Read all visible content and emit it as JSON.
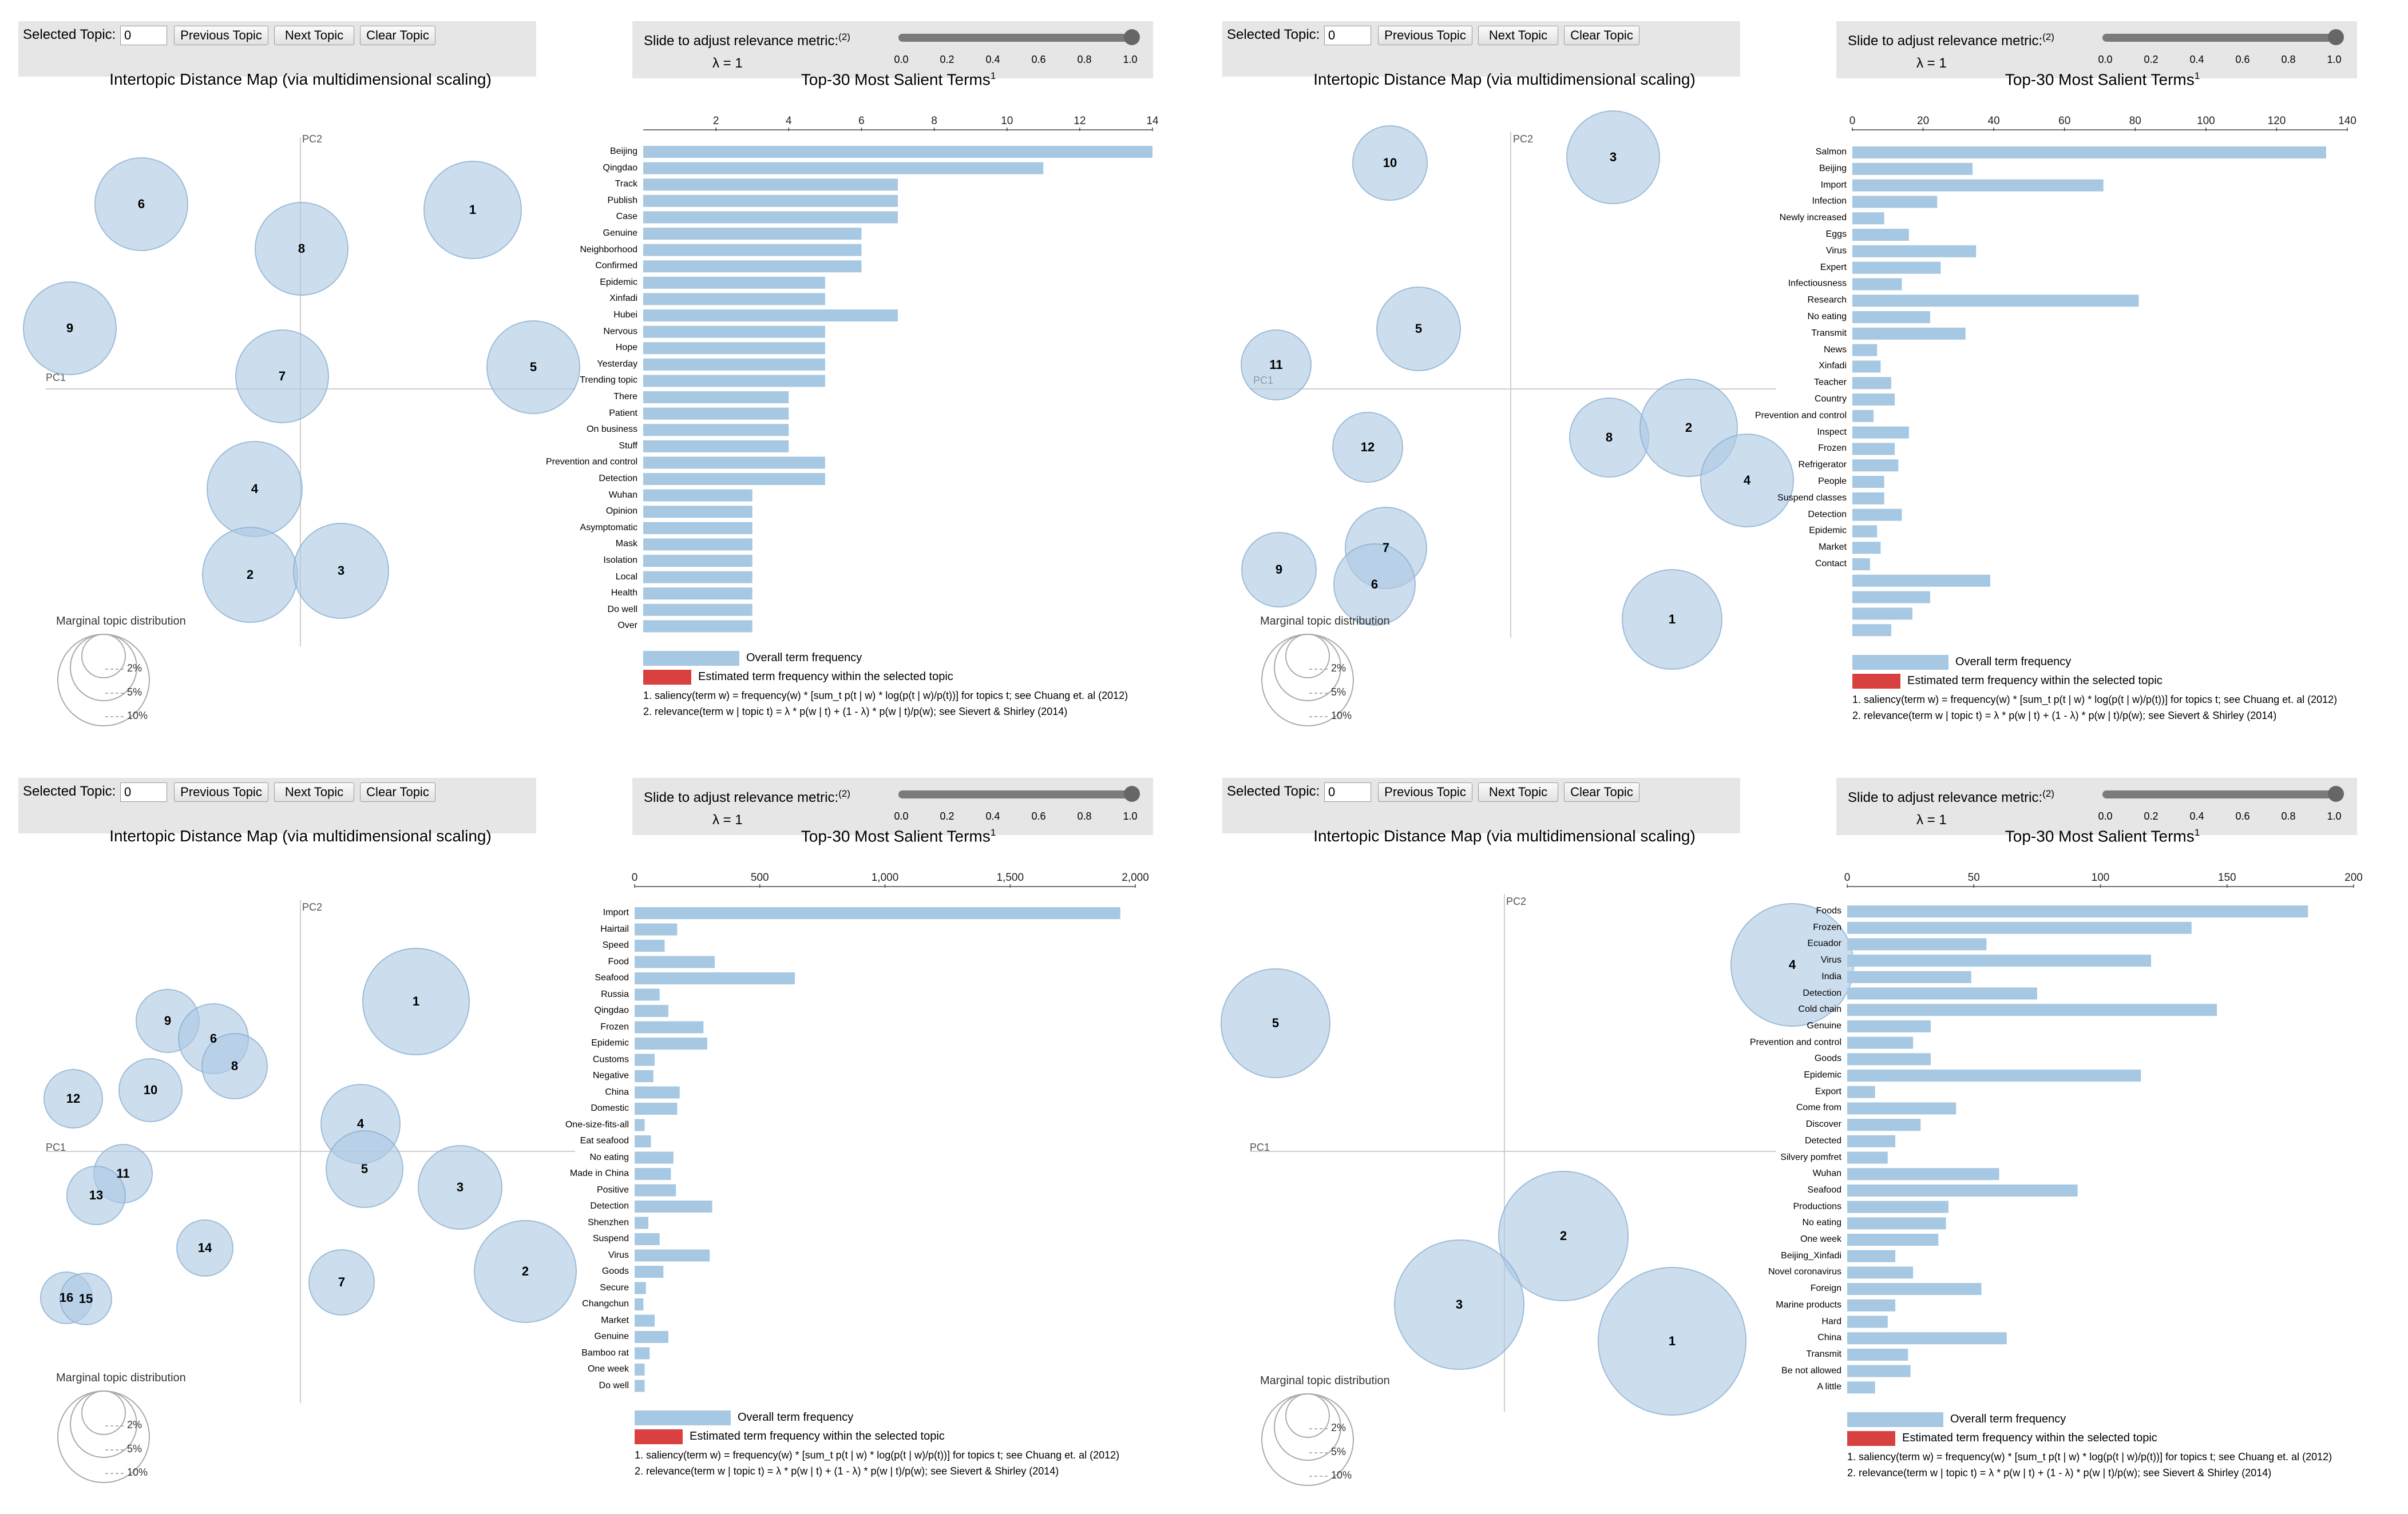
{
  "common": {
    "selected_topic_label": "Selected Topic:",
    "previous_topic": "Previous Topic",
    "next_topic": "Next Topic",
    "clear_topic": "Clear Topic",
    "relevance_label": "Slide to adjust relevance metric:",
    "relevance_sup": "(2)",
    "lambda_text": "λ = 1",
    "slider_ticks": [
      "0.0",
      "0.2",
      "0.4",
      "0.6",
      "0.8",
      "1.0"
    ],
    "slider_value": 1.0,
    "idm_title": "Intertopic Distance Map (via multidimensional scaling)",
    "salient_title": "Top-30 Most Salient Terms",
    "salient_sup": "1",
    "pc1": "PC1",
    "pc2": "PC2",
    "marginal_label": "Marginal topic distribution",
    "marginal_sizes": [
      "2%",
      "5%",
      "10%"
    ],
    "legend_overall": "Overall term frequency",
    "legend_estimated": "Estimated term frequency within the selected topic",
    "footnote1": "1. saliency(term w) = frequency(w) * [sum_t p(t | w) * log(p(t | w)/p(t))] for topics t; see Chuang et. al (2012)",
    "footnote2": "2. relevance(term w | topic t) = λ * p(w | t) + (1 - λ) * p(w | t)/p(w); see Sievert & Shirley (2014)",
    "colors": {
      "bar": "#a6c8e3",
      "estimated": "#d94040",
      "bubble": "#adcae3",
      "panel_bg": "#e6e6e6"
    }
  },
  "panels": [
    {
      "selected_topic_value": "0",
      "topics": [
        "6",
        "8",
        "1",
        "9",
        "7",
        "5",
        "4",
        "2",
        "3"
      ],
      "chart_data": {
        "type": "bar",
        "title": "Top-30 Most Salient Terms",
        "xlim": [
          0,
          14
        ],
        "ticks": [
          2,
          4,
          6,
          8,
          10,
          12,
          14
        ],
        "tick_labels": [
          "2",
          "4",
          "6",
          "8",
          "10",
          "12",
          "14"
        ],
        "categories": [
          "Beijing",
          "Qingdao",
          "Track",
          "Publish",
          "Case",
          "Genuine",
          "Neighborhood",
          "Confirmed",
          "Epidemic",
          "Xinfadi",
          "Hubei",
          "Nervous",
          "Hope",
          "Yesterday",
          "Trending topic",
          "There",
          "Patient",
          "On business",
          "Stuff",
          "Prevention and control",
          "Detection",
          "Wuhan",
          "Opinion",
          "Asymptomatic",
          "Mask",
          "Isolation",
          "Local",
          "Health",
          "Do well",
          "Over"
        ],
        "values": [
          14,
          11,
          7,
          7,
          7,
          6,
          6,
          6,
          5,
          5,
          7,
          5,
          5,
          5,
          5,
          4,
          4,
          4,
          4,
          5,
          5,
          3,
          3,
          3,
          3,
          3,
          3,
          3,
          3,
          3
        ]
      }
    },
    {
      "selected_topic_value": "0",
      "topics": [
        "10",
        "3",
        "5",
        "11",
        "12",
        "8",
        "2",
        "4",
        "7",
        "6",
        "9",
        "1"
      ],
      "chart_data": {
        "type": "bar",
        "title": "Top-30 Most Salient Terms",
        "xlim": [
          0,
          140
        ],
        "ticks": [
          0,
          20,
          40,
          60,
          80,
          100,
          120,
          140
        ],
        "tick_labels": [
          "0",
          "20",
          "40",
          "60",
          "80",
          "100",
          "120",
          "140"
        ],
        "categories": [
          "Salmon",
          "Beijing",
          "Import",
          "Infection",
          "Newly increased",
          "Eggs",
          "Virus",
          "Expert",
          "Infectiousness",
          "Research",
          "No eating",
          "Transmit",
          "News",
          "Xinfadi",
          "Teacher",
          "Country",
          "Prevention and control",
          "Inspect",
          "Frozen",
          "Refrigerator",
          "People",
          "Suspend classes",
          "Detection",
          "Epidemic",
          "Market",
          "Contact",
          "",
          "",
          "",
          ""
        ],
        "values": [
          134,
          34,
          71,
          24,
          9,
          16,
          35,
          25,
          14,
          81,
          22,
          32,
          7,
          8,
          11,
          12,
          6,
          16,
          12,
          13,
          9,
          9,
          14,
          7,
          8,
          5,
          39,
          22,
          17,
          11
        ]
      }
    },
    {
      "selected_topic_value": "0",
      "topics": [
        "1",
        "9",
        "6",
        "8",
        "12",
        "10",
        "4",
        "5",
        "11",
        "13",
        "3",
        "14",
        "2",
        "7",
        "16",
        "15"
      ],
      "chart_data": {
        "type": "bar",
        "title": "Top-30 Most Salient Terms",
        "xlim": [
          0,
          2000
        ],
        "ticks": [
          0,
          500,
          1000,
          1500,
          2000
        ],
        "tick_labels": [
          "0",
          "500",
          "1,000",
          "1,500",
          "2,000"
        ],
        "categories": [
          "Import",
          "Hairtail",
          "Speed",
          "Food",
          "Seafood",
          "Russia",
          "Qingdao",
          "Frozen",
          "Epidemic",
          "Customs",
          "Negative",
          "China",
          "Domestic",
          "One-size-fits-all",
          "Eat seafood",
          "No eating",
          "Made in China",
          "Positive",
          "Detection",
          "Shenzhen",
          "Suspend",
          "Virus",
          "Goods",
          "Secure",
          "Changchun",
          "Market",
          "Genuine",
          "Bamboo rat",
          "One week",
          "Do well"
        ],
        "values": [
          1940,
          170,
          120,
          320,
          640,
          100,
          135,
          275,
          290,
          80,
          75,
          180,
          170,
          40,
          65,
          155,
          145,
          165,
          310,
          55,
          100,
          300,
          115,
          45,
          35,
          80,
          135,
          60,
          40,
          40
        ]
      }
    },
    {
      "selected_topic_value": "0",
      "topics": [
        "4",
        "5",
        "2",
        "3",
        "1"
      ],
      "chart_data": {
        "type": "bar",
        "title": "Top-30 Most Salient Terms",
        "xlim": [
          0,
          200
        ],
        "ticks": [
          0,
          50,
          100,
          150,
          200
        ],
        "tick_labels": [
          "0",
          "50",
          "100",
          "150",
          "200"
        ],
        "categories": [
          "Foods",
          "Frozen",
          "Ecuador",
          "Virus",
          "India",
          "Detection",
          "Cold chain",
          "Genuine",
          "Prevention and control",
          "Goods",
          "Epidemic",
          "Export",
          "Come from",
          "Discover",
          "Detected",
          "Silvery pomfret",
          "Wuhan",
          "Seafood",
          "Productions",
          "No eating",
          "One week",
          "Beijing_Xinfadi",
          "Novel coronavirus",
          "Foreign",
          "Marine products",
          "Hard",
          "China",
          "Transmit",
          "Be not allowed",
          "A little"
        ],
        "values": [
          182,
          136,
          55,
          120,
          49,
          75,
          146,
          33,
          26,
          33,
          116,
          11,
          43,
          29,
          19,
          16,
          60,
          91,
          40,
          39,
          36,
          19,
          26,
          53,
          19,
          16,
          63,
          24,
          25,
          11
        ]
      }
    }
  ]
}
